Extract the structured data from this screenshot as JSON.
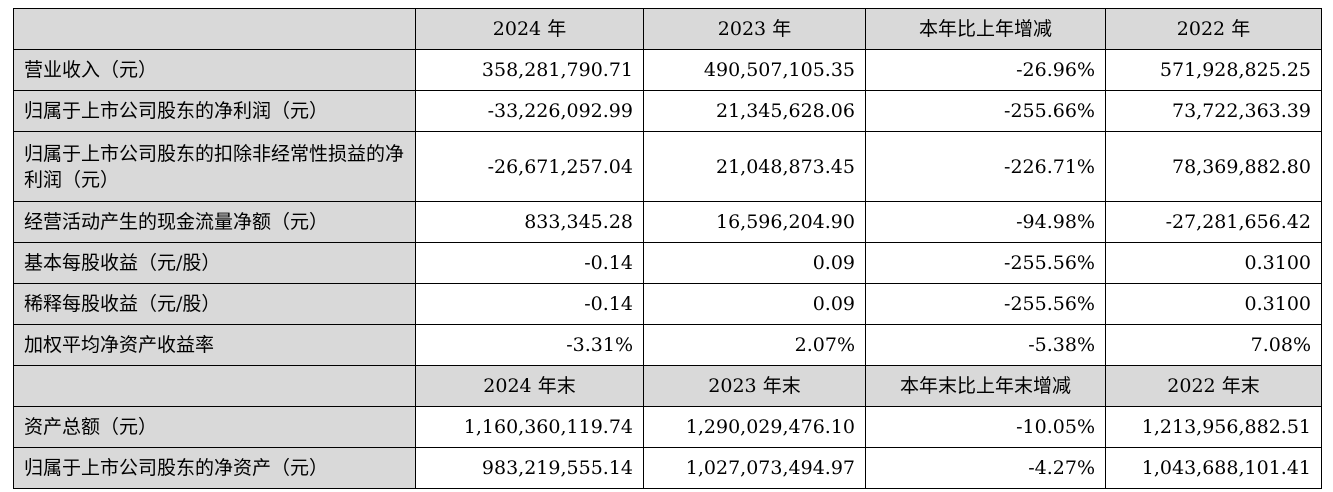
{
  "header1": [
    "",
    "2024 年",
    "2023 年",
    "本年比上年增减",
    "2022 年"
  ],
  "rows1": [
    {
      "label": "营业收入（元）",
      "values": [
        "358,281,790.71",
        "490,507,105.35",
        "-26.96%",
        "571,928,825.25"
      ]
    },
    {
      "label": "归属于上市公司股东的净利润（元）",
      "values": [
        "-33,226,092.99",
        "21,345,628.06",
        "-255.66%",
        "73,722,363.39"
      ]
    },
    {
      "label": "归属于上市公司股东的扣除非经常性损益的净利润（元）",
      "values": [
        "-26,671,257.04",
        "21,048,873.45",
        "-226.71%",
        "78,369,882.80"
      ]
    },
    {
      "label": "经营活动产生的现金流量净额（元）",
      "values": [
        "833,345.28",
        "16,596,204.90",
        "-94.98%",
        "-27,281,656.42"
      ]
    },
    {
      "label": "基本每股收益（元/股）",
      "values": [
        "-0.14",
        "0.09",
        "-255.56%",
        "0.3100"
      ]
    },
    {
      "label": "稀释每股收益（元/股）",
      "values": [
        "-0.14",
        "0.09",
        "-255.56%",
        "0.3100"
      ]
    },
    {
      "label": "加权平均净资产收益率",
      "values": [
        "-3.31%",
        "2.07%",
        "-5.38%",
        "7.08%"
      ]
    }
  ],
  "header2": [
    "",
    "2024 年末",
    "2023 年末",
    "本年末比上年末增减",
    "2022 年末"
  ],
  "rows2": [
    {
      "label": "资产总额（元）",
      "values": [
        "1,160,360,119.74",
        "1,290,029,476.10",
        "-10.05%",
        "1,213,956,882.51"
      ]
    },
    {
      "label": "归属于上市公司股东的净资产（元）",
      "values": [
        "983,219,555.14",
        "1,027,073,494.97",
        "-4.27%",
        "1,043,688,101.41"
      ]
    }
  ]
}
